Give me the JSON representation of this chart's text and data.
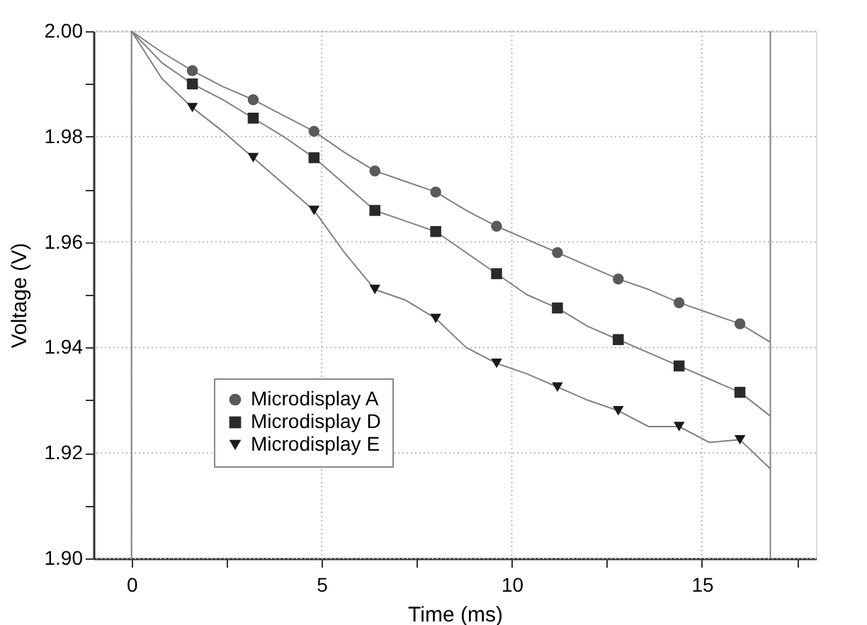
{
  "chart_data": {
    "type": "line",
    "xlabel": "Time (ms)",
    "ylabel": "Voltage (V)",
    "xlim": [
      -1,
      18
    ],
    "ylim": [
      1.9,
      2.0
    ],
    "xticks": [
      0,
      {
        "value": 2.5,
        "label": null
      },
      5,
      {
        "value": 7.5,
        "label": null
      },
      10,
      {
        "value": 12.5,
        "label": null
      },
      15,
      {
        "value": 17.5,
        "label": null
      }
    ],
    "yticks": [
      {
        "value": 1.9,
        "label": "1.90"
      },
      {
        "value": 1.91,
        "label": null
      },
      1.92,
      {
        "value": 1.93,
        "label": null
      },
      1.94,
      {
        "value": 1.95,
        "label": null
      },
      1.96,
      {
        "value": 1.97,
        "label": null
      },
      1.98,
      {
        "value": 1.99,
        "label": null
      },
      {
        "value": 2.0,
        "label": "2.00"
      }
    ],
    "grid": true,
    "legend": "bottom left",
    "ref_lines": [
      {
        "axis": "x",
        "value": 0,
        "color": "#808080"
      },
      {
        "axis": "x",
        "value": 16.8,
        "color": "#808080"
      }
    ],
    "series": [
      {
        "color": "#808080",
        "x": [
          0,
          0.8,
          1.6,
          2.4,
          3.2,
          4.0,
          4.8,
          5.6,
          6.4,
          7.2,
          8.0,
          8.8,
          9.6,
          10.4,
          11.2,
          12.0,
          12.8,
          13.6,
          14.4,
          15.2,
          16.0,
          16.8
        ],
        "values": [
          2.0,
          1.996,
          1.9925,
          1.9895,
          1.987,
          1.984,
          1.981,
          1.977,
          1.9735,
          1.9715,
          1.9695,
          1.966,
          1.963,
          1.9605,
          1.958,
          1.9555,
          1.953,
          1.951,
          1.9485,
          1.9465,
          1.9445,
          1.941
        ]
      },
      {
        "color": "#808080",
        "x": [
          0,
          0.8,
          1.6,
          2.4,
          3.2,
          4.0,
          4.8,
          5.6,
          6.4,
          7.2,
          8.0,
          8.8,
          9.6,
          10.4,
          11.2,
          12.0,
          12.8,
          13.6,
          14.4,
          15.2,
          16.0,
          16.8
        ],
        "values": [
          2.0,
          1.994,
          1.99,
          1.987,
          1.9835,
          1.98,
          1.976,
          1.971,
          1.966,
          1.964,
          1.962,
          1.958,
          1.954,
          1.95,
          1.9475,
          1.944,
          1.9415,
          1.939,
          1.9365,
          1.934,
          1.9315,
          1.927
        ]
      },
      {
        "color": "#808080",
        "x": [
          0,
          0.8,
          1.6,
          2.4,
          3.2,
          4.0,
          4.8,
          5.6,
          6.4,
          7.2,
          8.0,
          8.8,
          9.6,
          10.4,
          11.2,
          12.0,
          12.8,
          13.6,
          14.4,
          15.2,
          16.0,
          16.8
        ],
        "values": [
          2.0,
          1.991,
          1.9855,
          1.981,
          1.976,
          1.971,
          1.966,
          1.958,
          1.951,
          1.949,
          1.9455,
          1.94,
          1.937,
          1.935,
          1.9325,
          1.93,
          1.928,
          1.925,
          1.925,
          1.922,
          1.9225,
          1.917
        ]
      },
      {
        "type": "scatter",
        "name": "Microdisplay A",
        "color": "#5a5a5a",
        "marker": "circle",
        "x": [
          1.6,
          3.2,
          4.8,
          6.4,
          8.0,
          9.6,
          11.2,
          12.8,
          14.4,
          16.0
        ],
        "values": [
          1.9925,
          1.987,
          1.981,
          1.9735,
          1.9695,
          1.963,
          1.958,
          1.953,
          1.9485,
          1.9445
        ]
      },
      {
        "type": "scatter",
        "name": "Microdisplay D",
        "color": "#2a2a2a",
        "marker": "square",
        "x": [
          1.6,
          3.2,
          4.8,
          6.4,
          8.0,
          9.6,
          11.2,
          12.8,
          14.4,
          16.0
        ],
        "values": [
          1.99,
          1.9835,
          1.976,
          1.966,
          1.962,
          1.954,
          1.9475,
          1.9415,
          1.9365,
          1.9315
        ]
      },
      {
        "type": "scatter",
        "name": "Microdisplay E",
        "color": "#1a1a1a",
        "marker": "triangle",
        "x": [
          1.6,
          3.2,
          4.8,
          6.4,
          8.0,
          9.6,
          11.2,
          12.8,
          14.4,
          16.0
        ],
        "values": [
          1.9855,
          1.976,
          1.966,
          1.951,
          1.9455,
          1.937,
          1.9325,
          1.928,
          1.925,
          1.9225
        ]
      }
    ]
  }
}
